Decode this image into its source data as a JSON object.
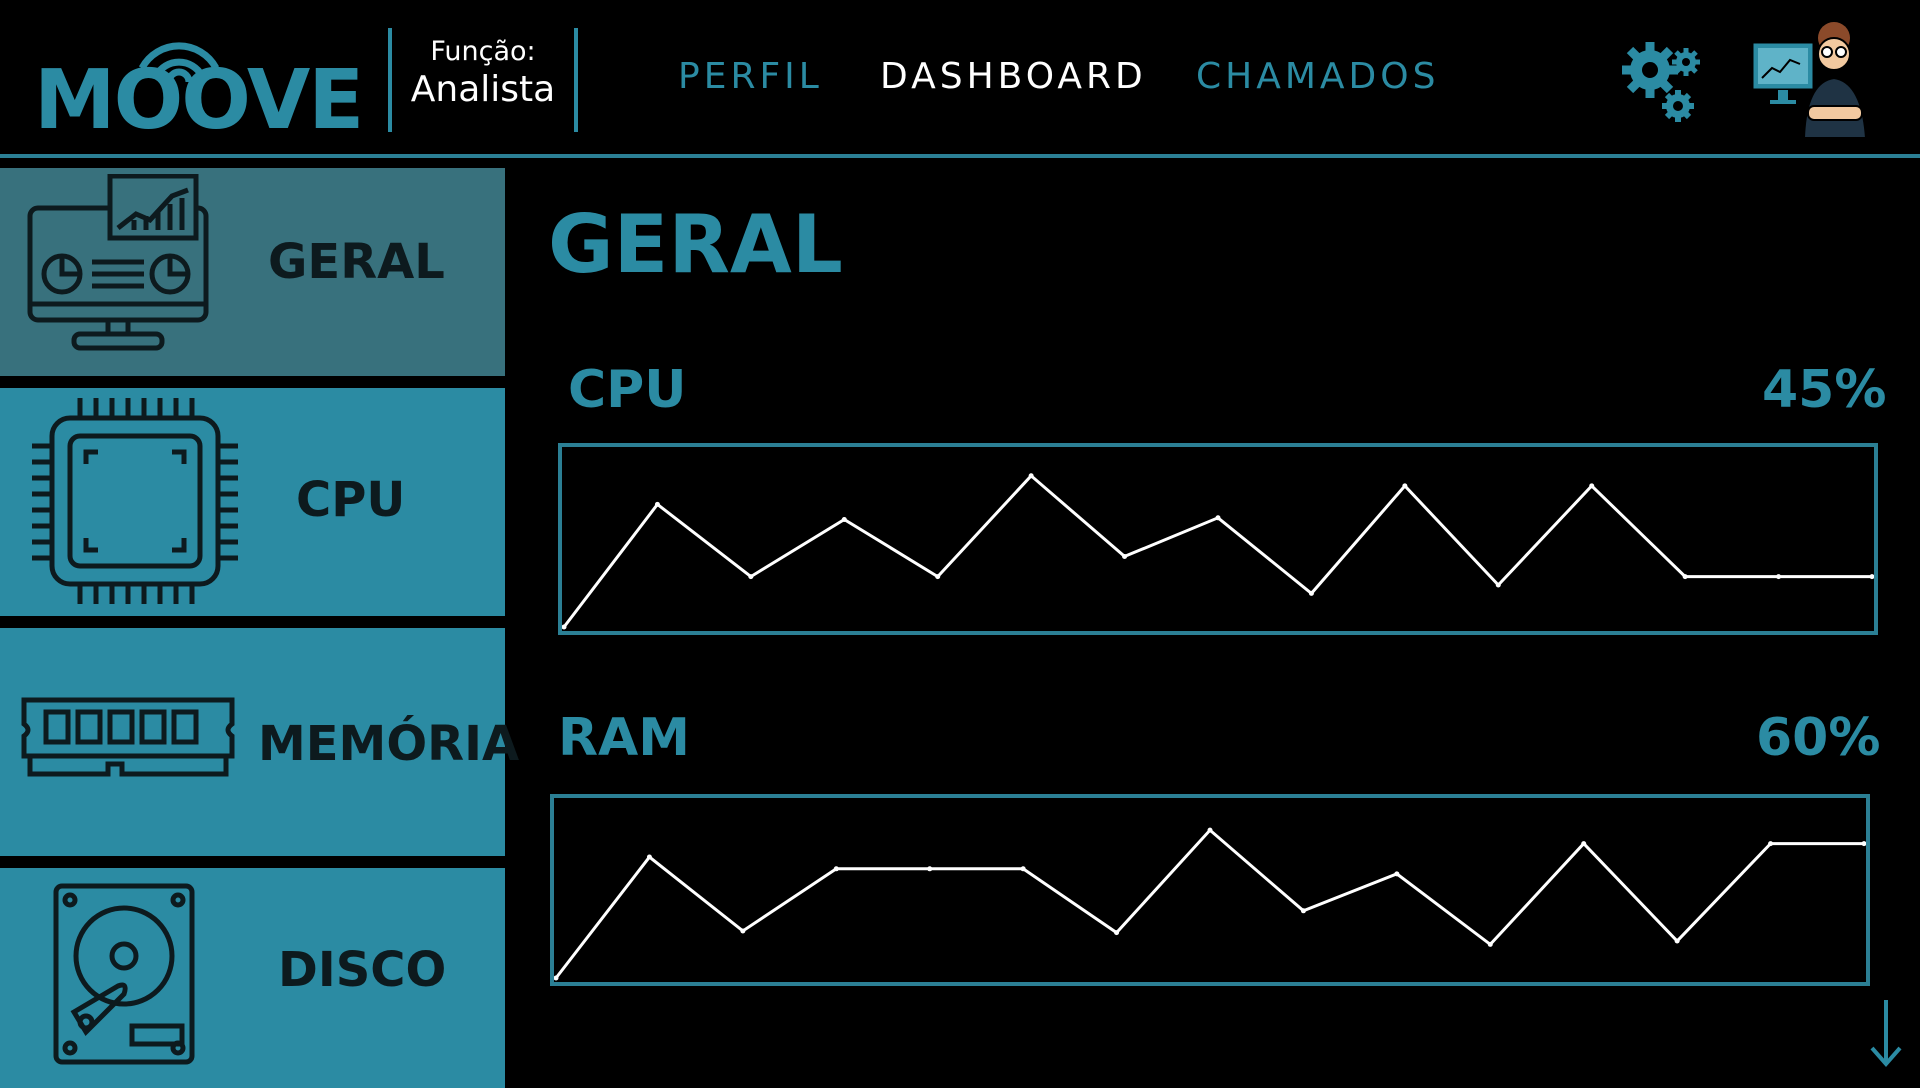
{
  "header": {
    "logo_text": "MOOVE",
    "role_label": "Função:",
    "role_value": "Analista",
    "nav": [
      {
        "label": "PERFIL",
        "active": false
      },
      {
        "label": "DASHBOARD",
        "active": true
      },
      {
        "label": "CHAMADOS",
        "active": false
      }
    ],
    "settings_icon": "gears-icon",
    "avatar_icon": "analyst-avatar-icon"
  },
  "sidebar": {
    "items": [
      {
        "label": "GERAL",
        "icon": "monitor-dashboard-icon",
        "active": true
      },
      {
        "label": "CPU",
        "icon": "cpu-chip-icon",
        "active": false
      },
      {
        "label": "MEMÓRIA",
        "icon": "memory-ram-icon",
        "active": false
      },
      {
        "label": "DISCO",
        "icon": "hard-disk-icon",
        "active": false
      }
    ]
  },
  "main": {
    "title": "GERAL",
    "metrics": [
      {
        "name": "CPU",
        "value": "45%"
      },
      {
        "name": "RAM",
        "value": "60%"
      }
    ]
  },
  "colors": {
    "accent": "#2b8ba3",
    "sidebar_active": "#38717d",
    "background": "#000000",
    "line": "#ffffff"
  },
  "chart_data": [
    {
      "type": "line",
      "x": [
        0,
        1,
        2,
        3,
        4,
        5,
        6,
        7,
        8,
        9,
        10,
        11,
        12,
        13,
        14
      ],
      "series": [
        {
          "values": [
            0,
            73,
            30,
            64,
            30,
            90,
            42,
            65,
            20,
            84,
            25,
            84,
            30,
            30,
            30
          ]
        }
      ],
      "ylim": [
        0,
        100
      ]
    },
    {
      "type": "line",
      "x": [
        0,
        1,
        2,
        3,
        4,
        5,
        6,
        7,
        8,
        9,
        10,
        11,
        12,
        13,
        14
      ],
      "series": [
        {
          "values": [
            0,
            72,
            28,
            65,
            65,
            65,
            27,
            88,
            40,
            62,
            20,
            80,
            22,
            80,
            80
          ]
        }
      ],
      "ylim": [
        0,
        100
      ]
    }
  ]
}
